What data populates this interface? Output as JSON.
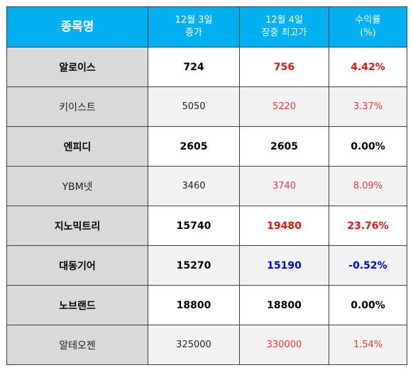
{
  "header": {
    "name": "종목명",
    "close_line1": "12월 3일",
    "close_line2": "종가",
    "high_line1": "12월 4일",
    "high_line2": "장중 최고가",
    "return_line1": "수익률",
    "return_line2": "(%)"
  },
  "rows": [
    {
      "name": "알로이스",
      "close": "724",
      "high": "756",
      "return": "4.42%"
    },
    {
      "name": "키이스트",
      "close": "5050",
      "high": "5220",
      "return": "3.37%"
    },
    {
      "name": "엔피디",
      "close": "2605",
      "high": "2605",
      "return": "0.00%"
    },
    {
      "name": "YBM넷",
      "close": "3460",
      "high": "3740",
      "return": "8.09%"
    },
    {
      "name": "지노믹트리",
      "close": "15740",
      "high": "19480",
      "return": "23.76%"
    },
    {
      "name": "대동기어",
      "close": "15270",
      "high": "15190",
      "return": "-0.52%"
    },
    {
      "name": "노브랜드",
      "close": "18800",
      "high": "18800",
      "return": "0.00%"
    },
    {
      "name": "알테오젠",
      "close": "325000",
      "high": "330000",
      "return": "1.54%"
    }
  ],
  "colors": {
    "header_bg": "#00b0f0",
    "name_bg": "#d9d9d9",
    "up": "#e81414",
    "down": "#0000e0",
    "flat": "#000000"
  }
}
